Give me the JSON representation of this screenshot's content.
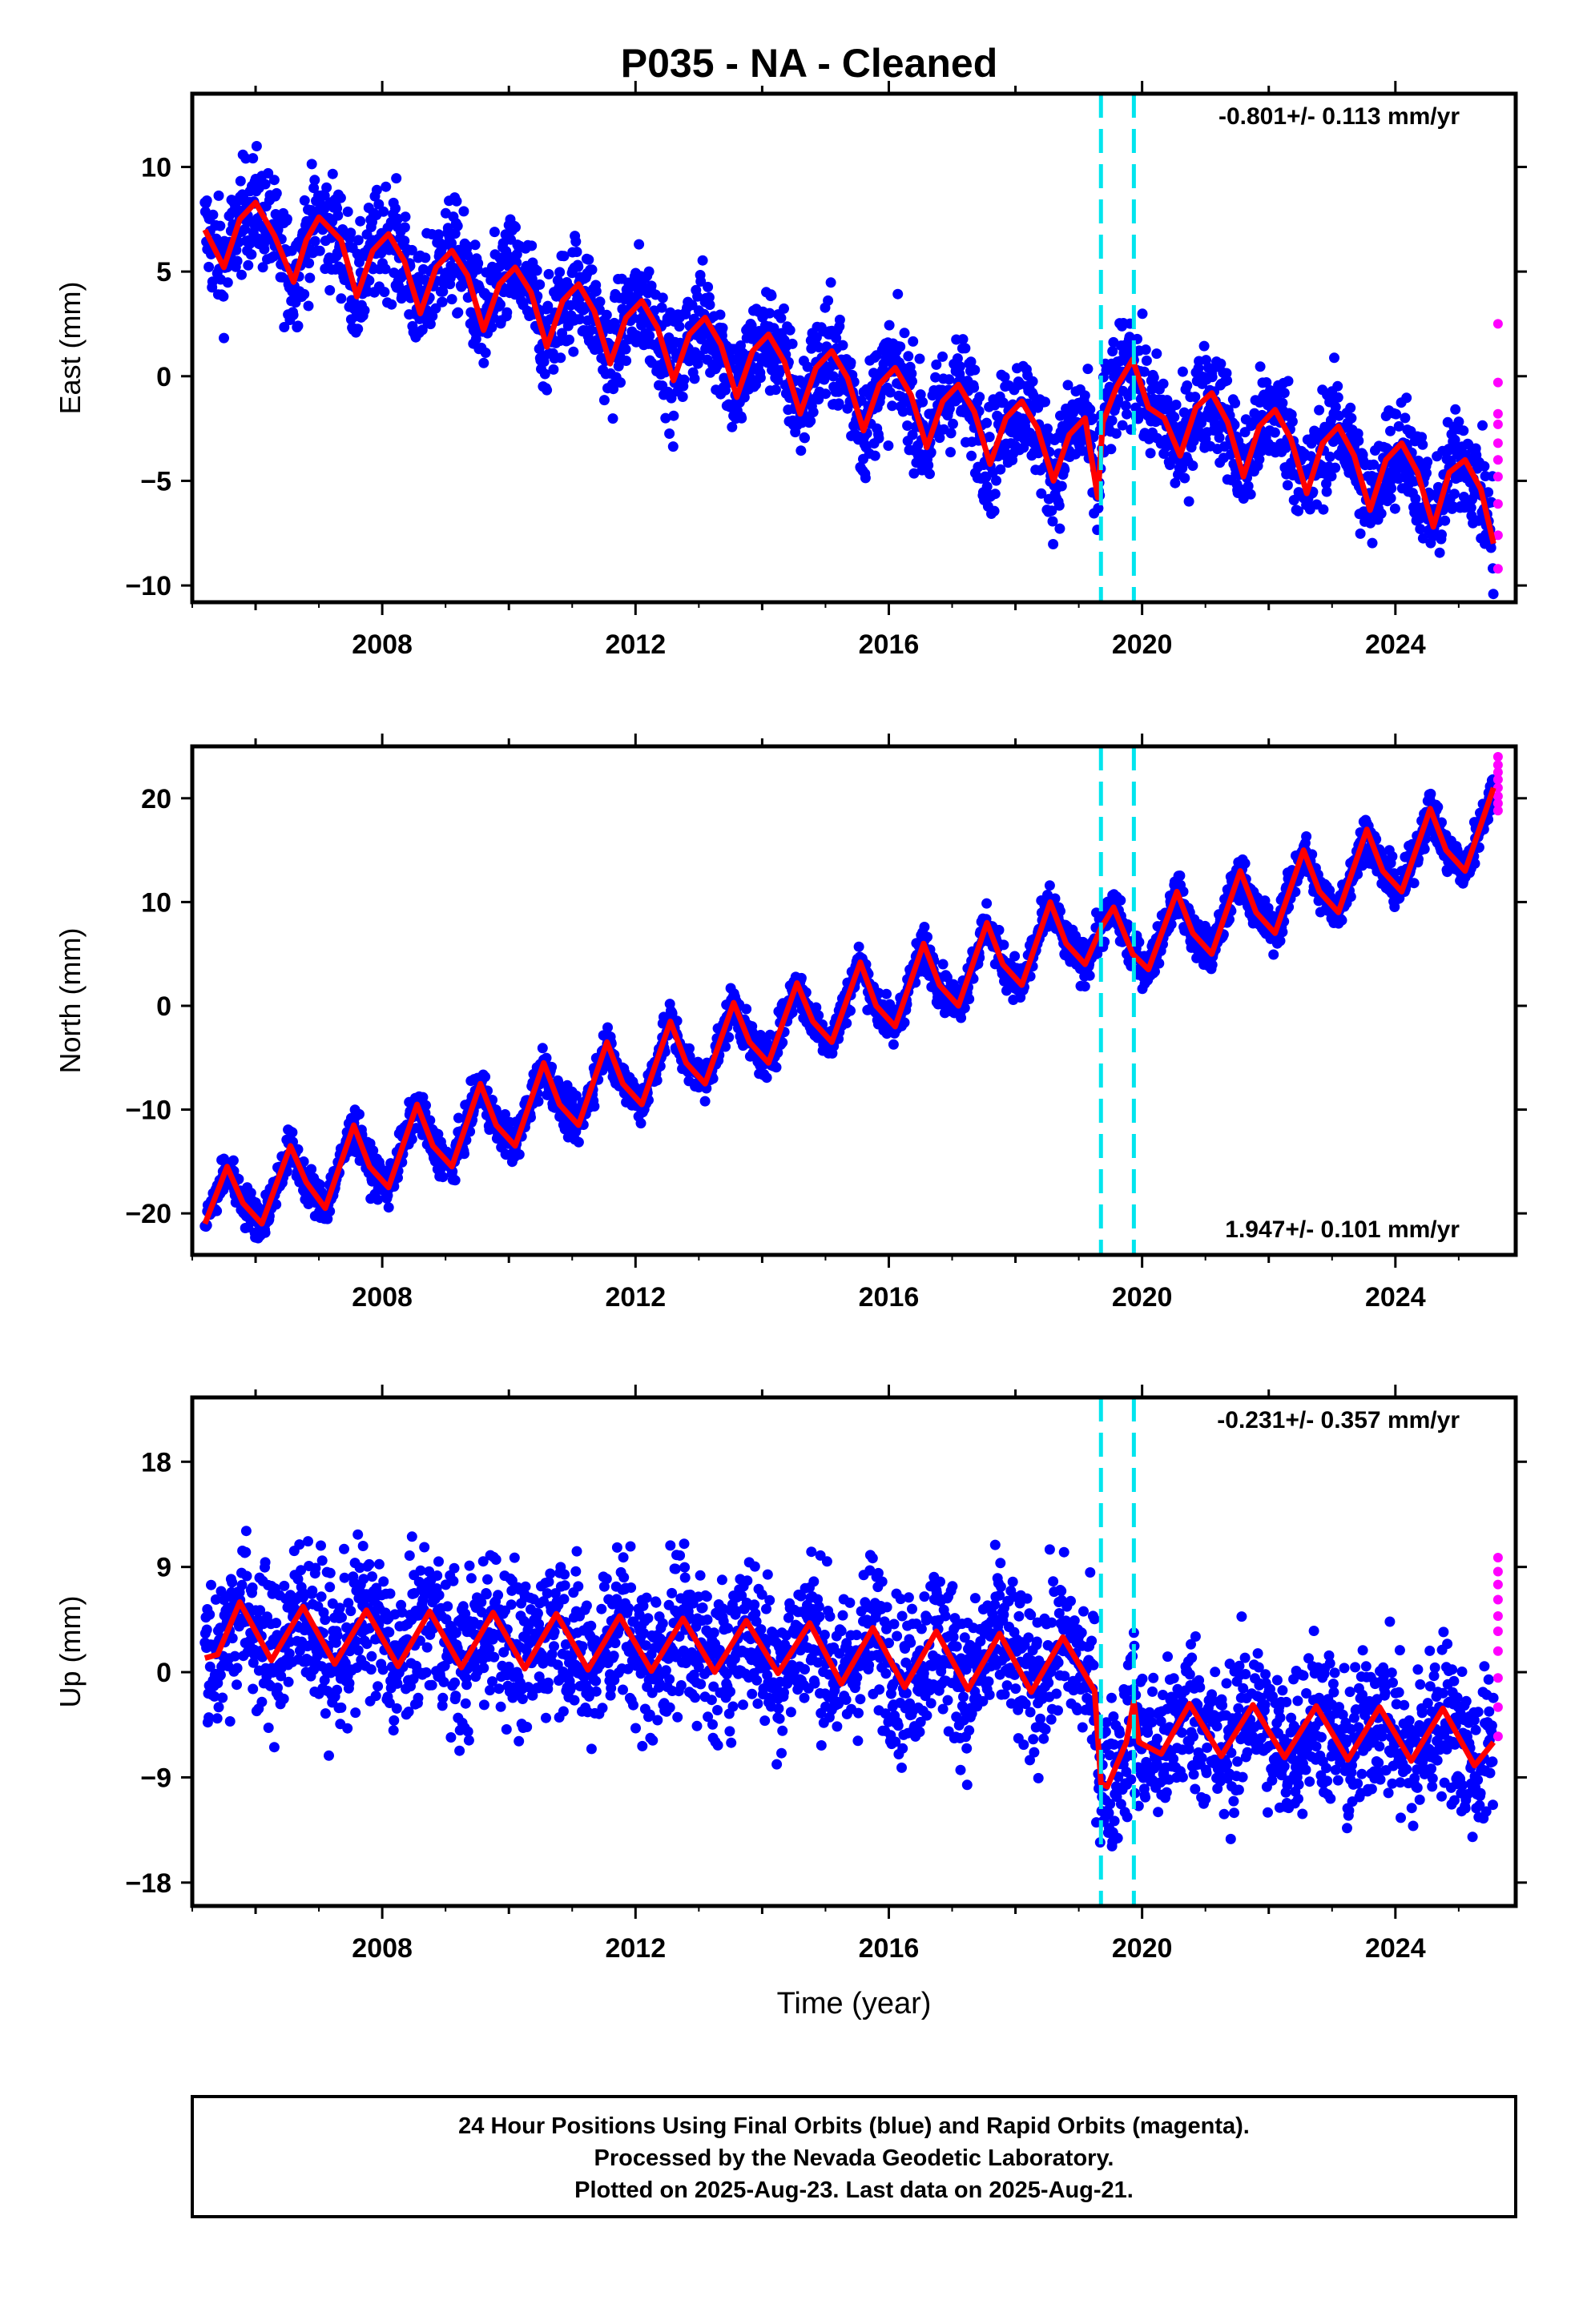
{
  "title": "P035  - NA - Cleaned",
  "colors": {
    "final_orbits": "#0000ff",
    "rapid_orbits": "#ff00ff",
    "model_fit": "#ff0000",
    "event_lines": "#00e5ee",
    "frame": "#000000"
  },
  "footer": {
    "line1": "24 Hour Positions Using Final Orbits (blue) and Rapid Orbits (magenta).",
    "line2": "Processed by the Nevada Geodetic Laboratory.",
    "line3": "Plotted on 2025-Aug-23. Last data on 2025-Aug-21."
  },
  "chart_data": [
    {
      "type": "scatter",
      "component": "east",
      "ylabel": "East (mm)",
      "xlabel": "",
      "rate_text": "-0.801+/- 0.113 mm/yr",
      "rate_position": "top-right",
      "xlim": [
        2005.0,
        2025.9
      ],
      "ylim": [
        -10.8,
        13.5
      ],
      "yticks": [
        10,
        5,
        0,
        -5,
        -10
      ],
      "ytick_labels": [
        "10",
        "5",
        "0",
        "−5",
        "−10"
      ],
      "xticks": [
        2008,
        2012,
        2016,
        2020,
        2024
      ],
      "xtick_labels": [
        "2008",
        "2012",
        "2016",
        "2020",
        "2024"
      ],
      "x_minor_ticks": [
        2006,
        2010,
        2014,
        2018,
        2022
      ],
      "grid": false,
      "event_lines_x": [
        2019.35,
        2019.87
      ],
      "model_fit": {
        "x": [
          2005.2,
          2005.5,
          2005.75,
          2006.0,
          2006.3,
          2006.6,
          2006.8,
          2007.0,
          2007.35,
          2007.6,
          2007.85,
          2008.1,
          2008.35,
          2008.6,
          2008.85,
          2009.1,
          2009.35,
          2009.6,
          2009.85,
          2010.1,
          2010.35,
          2010.6,
          2010.85,
          2011.1,
          2011.35,
          2011.6,
          2011.85,
          2012.1,
          2012.35,
          2012.6,
          2012.85,
          2013.1,
          2013.35,
          2013.6,
          2013.85,
          2014.1,
          2014.35,
          2014.6,
          2014.85,
          2015.1,
          2015.35,
          2015.6,
          2015.85,
          2016.1,
          2016.35,
          2016.6,
          2016.85,
          2017.1,
          2017.35,
          2017.6,
          2017.85,
          2018.1,
          2018.35,
          2018.6,
          2018.85,
          2019.1,
          2019.3,
          2019.38,
          2019.6,
          2019.85,
          2020.1,
          2020.35,
          2020.6,
          2020.85,
          2021.1,
          2021.35,
          2021.6,
          2021.85,
          2022.1,
          2022.35,
          2022.6,
          2022.85,
          2023.1,
          2023.35,
          2023.6,
          2023.85,
          2024.1,
          2024.35,
          2024.6,
          2024.85,
          2025.1,
          2025.35,
          2025.55
        ],
        "y": [
          7.0,
          5.2,
          7.5,
          8.3,
          6.7,
          4.5,
          6.5,
          7.6,
          6.5,
          3.8,
          6.0,
          6.8,
          5.5,
          3.0,
          5.2,
          6.0,
          4.8,
          2.2,
          4.4,
          5.2,
          4.0,
          1.4,
          3.6,
          4.4,
          3.1,
          0.6,
          2.8,
          3.6,
          2.3,
          -0.2,
          2.0,
          2.8,
          1.5,
          -1.0,
          1.2,
          2.0,
          0.7,
          -1.8,
          0.4,
          1.2,
          -0.1,
          -2.6,
          -0.4,
          0.4,
          -0.9,
          -3.4,
          -1.2,
          -0.4,
          -1.7,
          -4.2,
          -2.0,
          -1.2,
          -2.5,
          -5.0,
          -2.8,
          -2.0,
          -5.8,
          -2.2,
          -0.5,
          0.8,
          -1.5,
          -2.0,
          -3.8,
          -1.5,
          -0.8,
          -2.2,
          -4.8,
          -2.4,
          -1.6,
          -3.0,
          -5.6,
          -3.2,
          -2.4,
          -3.8,
          -6.4,
          -4.0,
          -3.2,
          -4.6,
          -7.2,
          -4.6,
          -4.0,
          -5.4,
          -8.0
        ]
      },
      "rapid_points_y": [
        2.5,
        -0.3,
        -1.8,
        -2.3,
        -3.2,
        -4.0,
        -4.8,
        -6.1,
        -7.6,
        -9.2
      ]
    },
    {
      "type": "scatter",
      "component": "north",
      "ylabel": "North (mm)",
      "xlabel": "",
      "rate_text": "1.947+/- 0.101 mm/yr",
      "rate_position": "bottom-right",
      "xlim": [
        2005.0,
        2025.9
      ],
      "ylim": [
        -24.0,
        25.0
      ],
      "yticks": [
        20,
        10,
        0,
        -10,
        -20
      ],
      "ytick_labels": [
        "20",
        "10",
        "0",
        "−10",
        "−20"
      ],
      "xticks": [
        2008,
        2012,
        2016,
        2020,
        2024
      ],
      "xtick_labels": [
        "2008",
        "2012",
        "2016",
        "2020",
        "2024"
      ],
      "x_minor_ticks": [
        2006,
        2010,
        2014,
        2018,
        2022
      ],
      "grid": false,
      "event_lines_x": [
        2019.35,
        2019.87
      ],
      "model_fit": {
        "x": [
          2005.2,
          2005.55,
          2005.8,
          2006.1,
          2006.55,
          2006.8,
          2007.1,
          2007.55,
          2007.8,
          2008.1,
          2008.55,
          2008.8,
          2009.1,
          2009.55,
          2009.8,
          2010.1,
          2010.55,
          2010.8,
          2011.1,
          2011.55,
          2011.8,
          2012.1,
          2012.55,
          2012.8,
          2013.1,
          2013.55,
          2013.8,
          2014.1,
          2014.55,
          2014.8,
          2015.1,
          2015.55,
          2015.8,
          2016.1,
          2016.55,
          2016.8,
          2017.1,
          2017.55,
          2017.8,
          2018.1,
          2018.55,
          2018.8,
          2019.1,
          2019.35,
          2019.55,
          2019.85,
          2020.1,
          2020.55,
          2020.8,
          2021.1,
          2021.55,
          2021.8,
          2022.1,
          2022.55,
          2022.8,
          2023.1,
          2023.55,
          2023.8,
          2024.1,
          2024.55,
          2024.8,
          2025.1,
          2025.55
        ],
        "y": [
          -21.0,
          -15.5,
          -19.0,
          -21.0,
          -13.5,
          -17.0,
          -19.5,
          -11.5,
          -15.5,
          -17.5,
          -9.5,
          -13.5,
          -15.5,
          -7.5,
          -11.5,
          -13.5,
          -5.5,
          -9.5,
          -11.5,
          -3.5,
          -7.5,
          -9.5,
          -1.5,
          -5.5,
          -7.5,
          0.3,
          -3.5,
          -5.5,
          2.2,
          -1.5,
          -3.5,
          4.2,
          0.0,
          -2.0,
          6.0,
          2.0,
          0.0,
          8.0,
          4.0,
          2.0,
          10.0,
          6.0,
          4.0,
          7.5,
          9.5,
          5.0,
          3.5,
          11.0,
          7.0,
          5.0,
          13.0,
          9.0,
          7.0,
          15.0,
          11.0,
          9.0,
          17.0,
          13.0,
          11.0,
          19.0,
          15.0,
          13.0,
          21.0
        ]
      },
      "rapid_points_y": [
        24.0,
        23.2,
        22.5,
        21.8,
        21.0,
        20.2,
        19.5,
        18.8
      ]
    },
    {
      "type": "scatter",
      "component": "up",
      "ylabel": "Up (mm)",
      "xlabel": "Time (year)",
      "rate_text": "-0.231+/- 0.357 mm/yr",
      "rate_position": "top-right",
      "xlim": [
        2005.0,
        2025.9
      ],
      "ylim": [
        -20.0,
        23.5
      ],
      "yticks": [
        18,
        9,
        0,
        -9,
        -18
      ],
      "ytick_labels": [
        "18",
        "9",
        "0",
        "−9",
        "−18"
      ],
      "xticks": [
        2008,
        2012,
        2016,
        2020,
        2024
      ],
      "xtick_labels": [
        "2008",
        "2012",
        "2016",
        "2020",
        "2024"
      ],
      "x_minor_ticks": [
        2006,
        2010,
        2014,
        2018,
        2022
      ],
      "grid": false,
      "event_lines_x": [
        2019.35,
        2019.87
      ],
      "model_fit": {
        "x": [
          2005.2,
          2005.4,
          2005.75,
          2006.25,
          2006.75,
          2007.25,
          2007.75,
          2008.25,
          2008.75,
          2009.25,
          2009.75,
          2010.25,
          2010.75,
          2011.25,
          2011.75,
          2012.25,
          2012.75,
          2013.25,
          2013.75,
          2014.25,
          2014.75,
          2015.25,
          2015.75,
          2016.25,
          2016.75,
          2017.25,
          2017.75,
          2018.25,
          2018.75,
          2019.25,
          2019.35,
          2019.45,
          2019.75,
          2019.87,
          2019.95,
          2020.3,
          2020.75,
          2021.25,
          2021.75,
          2022.25,
          2022.75,
          2023.25,
          2023.75,
          2024.25,
          2024.75,
          2025.25,
          2025.55
        ],
        "y": [
          1.2,
          1.5,
          6.0,
          1.0,
          5.6,
          0.7,
          5.3,
          0.5,
          5.2,
          0.4,
          5.1,
          0.3,
          5.0,
          0.2,
          4.8,
          0.1,
          4.6,
          0.0,
          4.4,
          -0.1,
          4.2,
          -1.0,
          3.8,
          -1.3,
          3.5,
          -1.5,
          3.3,
          -1.7,
          3.0,
          -1.6,
          -9.5,
          -9.8,
          -6.0,
          -2.5,
          -6.0,
          -7.0,
          -2.7,
          -7.2,
          -2.8,
          -7.3,
          -2.9,
          -7.5,
          -3.0,
          -7.6,
          -3.1,
          -8.0,
          -6.0
        ]
      },
      "rapid_points_y": [
        9.8,
        8.6,
        7.5,
        6.2,
        4.8,
        3.5,
        1.8,
        -0.5,
        -3.0,
        -5.5
      ]
    }
  ]
}
